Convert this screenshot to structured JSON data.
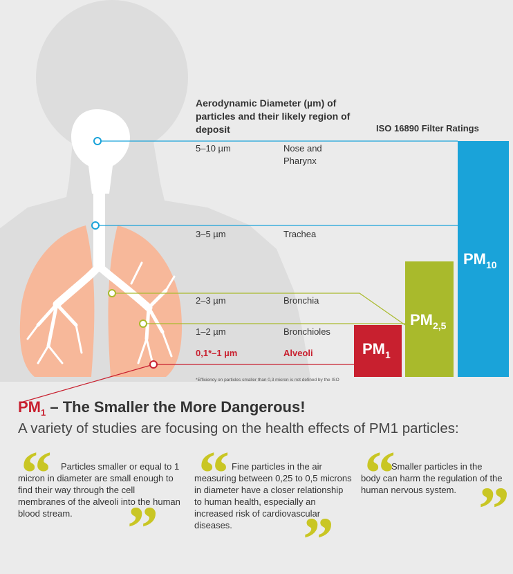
{
  "diagram": {
    "heading": "Aerodynamic Diameter (µm) of particles and their likely region of deposit",
    "iso_title": "ISO 16890 Filter Ratings",
    "rows": [
      {
        "size": "5–10 µm",
        "region": "Nose and Pharynx",
        "color": "#1aa3d9"
      },
      {
        "size": "3–5 µm",
        "region": "Trachea",
        "color": "#1aa3d9"
      },
      {
        "size": "2–3 µm",
        "region": "Bronchia",
        "color": "#a9ba2c"
      },
      {
        "size": "1–2 µm",
        "region": "Bronchioles",
        "color": "#a9ba2c"
      },
      {
        "size": "0,1*–1 µm",
        "region": "Alveoli",
        "color": "#c8202f"
      }
    ],
    "bars": [
      {
        "base": "PM",
        "sub": "1",
        "color": "#c8202f"
      },
      {
        "base": "PM",
        "sub": "2,5",
        "color": "#a9ba2c"
      },
      {
        "base": "PM",
        "sub": "10",
        "color": "#1aa3d9"
      }
    ],
    "footnote": "*Efficiency on particles smaller than 0,3 micron is not defined by the ISO"
  },
  "article": {
    "title_pm": "PM",
    "title_sub": "1",
    "title_rest": " – The Smaller the More Dangerous!",
    "subtitle": "A variety of studies are focusing on the health effects of PM1 particles:",
    "quotes": [
      "Particles smaller or equal to 1 micron in diameter are small enough to find their way through the cell membranes of the alveoli into the human blood stream.",
      "Fine particles in the air measuring between 0,25 to 0,5 microns in diameter have a closer relationship to human health, especially an increased risk of cardiovascular diseases.",
      "Smaller particles in the body can harm the regulation of the human nervous system."
    ],
    "open_quote": "“",
    "close_quote": "”"
  },
  "colors": {
    "background": "#ebebeb",
    "silhouette": "#dddddd",
    "lung": "#f7b89a",
    "red": "#c8202f",
    "green": "#a9ba2c",
    "blue": "#1aa3d9",
    "quote_mark": "#c9c624"
  },
  "icons": [
    "human-silhouette-illustration",
    "lungs-illustration",
    "quote-open-icon",
    "quote-close-icon"
  ]
}
